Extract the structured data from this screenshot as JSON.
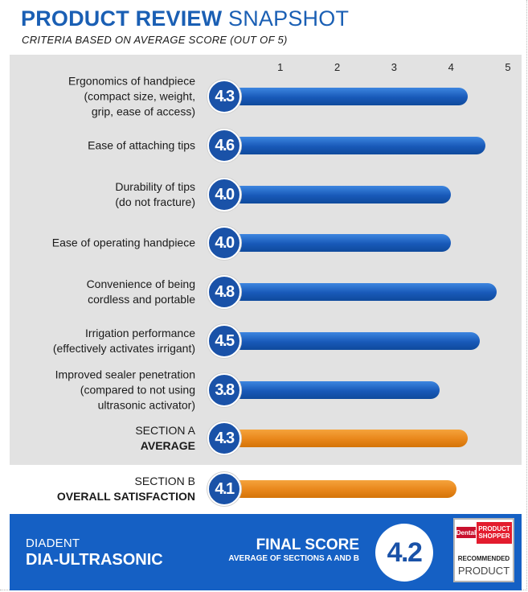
{
  "title_bold": "PRODUCT REVIEW",
  "title_light": "SNAPSHOT",
  "subtitle": "CRITERIA BASED ON AVERAGE SCORE (OUT OF 5)",
  "colors": {
    "blue": "#1a5fb4",
    "orange": "#e8861a",
    "section_bg": "#e2e2e2",
    "footer_bg": "#1560c4"
  },
  "chart_data": {
    "type": "bar",
    "orientation": "horizontal",
    "title": "PRODUCT REVIEW SNAPSHOT",
    "subtitle": "CRITERIA BASED ON AVERAGE SCORE (OUT OF 5)",
    "xlim": [
      0,
      5
    ],
    "ticks": [
      "1",
      "2",
      "3",
      "4",
      "5"
    ],
    "grid": false,
    "rows": [
      {
        "lines": [
          "Ergonomics of handpiece",
          "(compact size, weight,",
          "grip, ease of access)"
        ],
        "value": 4.3,
        "value_label": "4.3",
        "color": "blue"
      },
      {
        "lines": [
          "Ease of attaching tips"
        ],
        "value": 4.6,
        "value_label": "4.6",
        "color": "blue"
      },
      {
        "lines": [
          "Durability of tips",
          "(do not fracture)"
        ],
        "value": 4.0,
        "value_label": "4.0",
        "color": "blue"
      },
      {
        "lines": [
          "Ease of operating handpiece"
        ],
        "value": 4.0,
        "value_label": "4.0",
        "color": "blue"
      },
      {
        "lines": [
          "Convenience of being",
          "cordless and portable"
        ],
        "value": 4.8,
        "value_label": "4.8",
        "color": "blue"
      },
      {
        "lines": [
          "Irrigation performance",
          "(effectively activates irrigant)"
        ],
        "value": 4.5,
        "value_label": "4.5",
        "color": "blue"
      },
      {
        "lines": [
          "Improved sealer penetration",
          "(compared to not using",
          "ultrasonic activator)"
        ],
        "value": 3.8,
        "value_label": "3.8",
        "color": "blue"
      },
      {
        "lines": [
          "SECTION A"
        ],
        "strong": "AVERAGE",
        "value": 4.3,
        "value_label": "4.3",
        "color": "orange"
      },
      {
        "lines": [
          "SECTION B"
        ],
        "strong": "OVERALL SATISFACTION",
        "value": 4.1,
        "value_label": "4.1",
        "color": "orange"
      }
    ]
  },
  "footer": {
    "brand": "DIADENT",
    "product": "DIA-ULTRASONIC",
    "final_label": "FINAL SCORE",
    "final_sub": "AVERAGE OF SECTIONS A AND B",
    "final_value": "4.2"
  },
  "logo": {
    "dental": "Dental",
    "product": "PRODUCT",
    "shopper": "SHOPPER",
    "recommended": "RECOMMENDED",
    "product_word": "PRODUCT"
  }
}
